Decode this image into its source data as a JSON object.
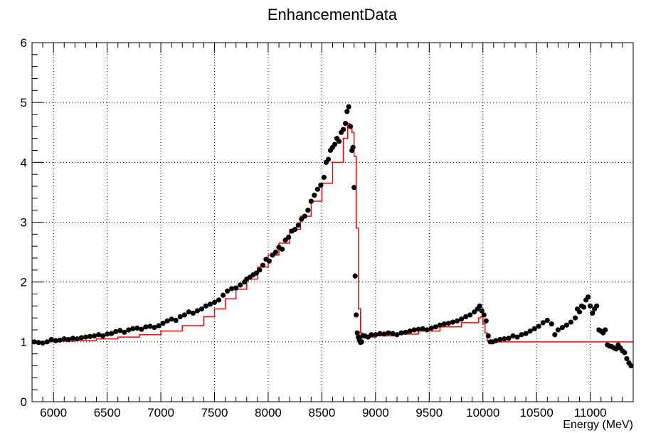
{
  "chart_data": {
    "type": "scatter",
    "title": "EnhancementData",
    "xlabel": "Energy (MeV)",
    "ylabel": "",
    "xlim": [
      5800,
      11400
    ],
    "ylim": [
      0,
      6
    ],
    "grid": true,
    "x_ticks": [
      6000,
      6500,
      7000,
      7500,
      8000,
      8500,
      9000,
      9500,
      10000,
      10500,
      11000
    ],
    "y_ticks": [
      0,
      1,
      2,
      3,
      4,
      5,
      6
    ],
    "colors": {
      "points": "#000000",
      "fit": "#ff0000",
      "grid": "#000000",
      "axis": "#000000"
    },
    "series": [
      {
        "type": "scatter",
        "points": [
          [
            5820,
            1.0
          ],
          [
            5860,
            0.99
          ],
          [
            5900,
            0.98
          ],
          [
            5940,
            1.0
          ],
          [
            5980,
            1.04
          ],
          [
            6020,
            1.02
          ],
          [
            6060,
            1.03
          ],
          [
            6100,
            1.05
          ],
          [
            6140,
            1.04
          ],
          [
            6180,
            1.06
          ],
          [
            6220,
            1.05
          ],
          [
            6260,
            1.07
          ],
          [
            6300,
            1.08
          ],
          [
            6340,
            1.09
          ],
          [
            6380,
            1.1
          ],
          [
            6420,
            1.12
          ],
          [
            6460,
            1.1
          ],
          [
            6500,
            1.13
          ],
          [
            6540,
            1.14
          ],
          [
            6580,
            1.17
          ],
          [
            6620,
            1.19
          ],
          [
            6660,
            1.16
          ],
          [
            6700,
            1.2
          ],
          [
            6740,
            1.22
          ],
          [
            6780,
            1.23
          ],
          [
            6820,
            1.21
          ],
          [
            6860,
            1.25
          ],
          [
            6900,
            1.26
          ],
          [
            6940,
            1.24
          ],
          [
            6980,
            1.27
          ],
          [
            7020,
            1.31
          ],
          [
            7060,
            1.35
          ],
          [
            7100,
            1.38
          ],
          [
            7140,
            1.36
          ],
          [
            7180,
            1.42
          ],
          [
            7220,
            1.45
          ],
          [
            7260,
            1.5
          ],
          [
            7300,
            1.48
          ],
          [
            7340,
            1.52
          ],
          [
            7380,
            1.55
          ],
          [
            7420,
            1.6
          ],
          [
            7460,
            1.63
          ],
          [
            7500,
            1.66
          ],
          [
            7540,
            1.7
          ],
          [
            7580,
            1.78
          ],
          [
            7620,
            1.85
          ],
          [
            7660,
            1.89
          ],
          [
            7700,
            1.9
          ],
          [
            7740,
            1.95
          ],
          [
            7780,
            2.0
          ],
          [
            7800,
            2.05
          ],
          [
            7830,
            2.08
          ],
          [
            7860,
            2.12
          ],
          [
            7890,
            2.15
          ],
          [
            7920,
            2.2
          ],
          [
            7950,
            2.28
          ],
          [
            7980,
            2.38
          ],
          [
            8010,
            2.35
          ],
          [
            8040,
            2.45
          ],
          [
            8070,
            2.5
          ],
          [
            8100,
            2.58
          ],
          [
            8130,
            2.55
          ],
          [
            8160,
            2.7
          ],
          [
            8190,
            2.75
          ],
          [
            8220,
            2.85
          ],
          [
            8250,
            2.88
          ],
          [
            8280,
            2.95
          ],
          [
            8310,
            3.05
          ],
          [
            8340,
            3.1
          ],
          [
            8370,
            3.2
          ],
          [
            8400,
            3.35
          ],
          [
            8430,
            3.45
          ],
          [
            8460,
            3.55
          ],
          [
            8490,
            3.62
          ],
          [
            8520,
            3.75
          ],
          [
            8540,
            4.0
          ],
          [
            8560,
            4.05
          ],
          [
            8580,
            4.2
          ],
          [
            8600,
            4.25
          ],
          [
            8620,
            4.3
          ],
          [
            8640,
            4.4
          ],
          [
            8660,
            4.35
          ],
          [
            8680,
            4.5
          ],
          [
            8700,
            4.55
          ],
          [
            8720,
            4.65
          ],
          [
            8735,
            4.85
          ],
          [
            8750,
            4.93
          ],
          [
            8765,
            4.6
          ],
          [
            8780,
            4.2
          ],
          [
            8790,
            4.25
          ],
          [
            8800,
            3.58
          ],
          [
            8810,
            2.1
          ],
          [
            8820,
            1.45
          ],
          [
            8830,
            1.15
          ],
          [
            8840,
            1.08
          ],
          [
            8850,
            1.03
          ],
          [
            8860,
            0.99
          ],
          [
            8870,
            1.0
          ],
          [
            8880,
            1.1
          ],
          [
            8900,
            1.1
          ],
          [
            8930,
            1.08
          ],
          [
            8960,
            1.12
          ],
          [
            9000,
            1.12
          ],
          [
            9040,
            1.14
          ],
          [
            9080,
            1.13
          ],
          [
            9120,
            1.15
          ],
          [
            9160,
            1.14
          ],
          [
            9200,
            1.12
          ],
          [
            9240,
            1.15
          ],
          [
            9280,
            1.16
          ],
          [
            9320,
            1.18
          ],
          [
            9360,
            1.2
          ],
          [
            9400,
            1.21
          ],
          [
            9440,
            1.22
          ],
          [
            9480,
            1.2
          ],
          [
            9520,
            1.23
          ],
          [
            9560,
            1.25
          ],
          [
            9600,
            1.28
          ],
          [
            9640,
            1.3
          ],
          [
            9680,
            1.31
          ],
          [
            9720,
            1.33
          ],
          [
            9760,
            1.35
          ],
          [
            9800,
            1.38
          ],
          [
            9840,
            1.42
          ],
          [
            9880,
            1.45
          ],
          [
            9920,
            1.5
          ],
          [
            9950,
            1.55
          ],
          [
            9970,
            1.6
          ],
          [
            9990,
            1.52
          ],
          [
            10010,
            1.45
          ],
          [
            10030,
            1.35
          ],
          [
            10050,
            1.1
          ],
          [
            10070,
            1.0
          ],
          [
            10090,
            1.0
          ],
          [
            10120,
            1.02
          ],
          [
            10160,
            1.04
          ],
          [
            10200,
            1.05
          ],
          [
            10240,
            1.06
          ],
          [
            10280,
            1.1
          ],
          [
            10320,
            1.08
          ],
          [
            10360,
            1.12
          ],
          [
            10400,
            1.14
          ],
          [
            10440,
            1.18
          ],
          [
            10480,
            1.22
          ],
          [
            10520,
            1.26
          ],
          [
            10560,
            1.32
          ],
          [
            10600,
            1.36
          ],
          [
            10640,
            1.3
          ],
          [
            10670,
            1.12
          ],
          [
            10700,
            1.2
          ],
          [
            10740,
            1.24
          ],
          [
            10780,
            1.28
          ],
          [
            10820,
            1.33
          ],
          [
            10860,
            1.4
          ],
          [
            10880,
            1.55
          ],
          [
            10900,
            1.5
          ],
          [
            10920,
            1.6
          ],
          [
            10940,
            1.58
          ],
          [
            10960,
            1.7
          ],
          [
            10980,
            1.75
          ],
          [
            11000,
            1.6
          ],
          [
            11020,
            1.48
          ],
          [
            11040,
            1.55
          ],
          [
            11060,
            1.6
          ],
          [
            11080,
            1.2
          ],
          [
            11100,
            1.18
          ],
          [
            11120,
            1.15
          ],
          [
            11140,
            1.2
          ],
          [
            11160,
            0.95
          ],
          [
            11180,
            0.93
          ],
          [
            11200,
            0.92
          ],
          [
            11220,
            0.9
          ],
          [
            11240,
            0.88
          ],
          [
            11260,
            0.95
          ],
          [
            11280,
            0.9
          ],
          [
            11300,
            0.85
          ],
          [
            11320,
            0.82
          ],
          [
            11340,
            0.72
          ],
          [
            11360,
            0.65
          ],
          [
            11380,
            0.6
          ]
        ]
      },
      {
        "type": "step",
        "points": [
          [
            5800,
            1.0
          ],
          [
            6000,
            1.01
          ],
          [
            6200,
            1.02
          ],
          [
            6400,
            1.05
          ],
          [
            6600,
            1.08
          ],
          [
            6800,
            1.12
          ],
          [
            7000,
            1.18
          ],
          [
            7200,
            1.27
          ],
          [
            7400,
            1.42
          ],
          [
            7500,
            1.55
          ],
          [
            7600,
            1.72
          ],
          [
            7700,
            1.88
          ],
          [
            7800,
            2.05
          ],
          [
            7900,
            2.25
          ],
          [
            8000,
            2.45
          ],
          [
            8100,
            2.65
          ],
          [
            8200,
            2.88
          ],
          [
            8300,
            3.1
          ],
          [
            8400,
            3.35
          ],
          [
            8500,
            3.65
          ],
          [
            8600,
            4.0
          ],
          [
            8700,
            4.4
          ],
          [
            8740,
            4.65
          ],
          [
            8760,
            4.58
          ],
          [
            8780,
            4.5
          ],
          [
            8800,
            4.1
          ],
          [
            8820,
            2.9
          ],
          [
            8840,
            1.55
          ],
          [
            8860,
            1.15
          ],
          [
            8880,
            1.08
          ],
          [
            8900,
            1.08
          ],
          [
            9000,
            1.1
          ],
          [
            9200,
            1.13
          ],
          [
            9400,
            1.18
          ],
          [
            9600,
            1.25
          ],
          [
            9800,
            1.32
          ],
          [
            9960,
            1.4
          ],
          [
            9980,
            1.42
          ],
          [
            10000,
            1.3
          ],
          [
            10020,
            1.15
          ],
          [
            10040,
            1.02
          ],
          [
            10060,
            1.0
          ],
          [
            11400,
            1.0
          ]
        ]
      }
    ]
  }
}
